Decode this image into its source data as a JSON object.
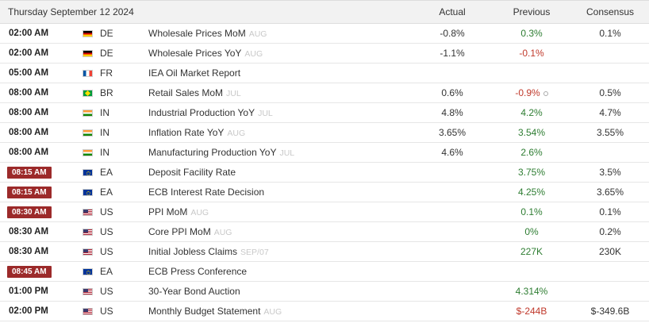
{
  "header": {
    "date": "Thursday September 12 2024",
    "actual": "Actual",
    "previous": "Previous",
    "consensus": "Consensus"
  },
  "colors": {
    "badge": "#9c2a2a",
    "positive": "#2e7d32",
    "negative": "#c0392b"
  },
  "rows": [
    {
      "time": "02:00 AM",
      "badge": false,
      "flag": "de-flag-icon",
      "country": "DE",
      "event": "Wholesale Prices MoM",
      "ref": "AUG",
      "actual": "-0.8%",
      "previous": "0.3%",
      "prevClass": "up",
      "consensus": "0.1%"
    },
    {
      "time": "02:00 AM",
      "badge": false,
      "flag": "de-flag-icon",
      "country": "DE",
      "event": "Wholesale Prices YoY",
      "ref": "AUG",
      "actual": "-1.1%",
      "previous": "-0.1%",
      "prevClass": "down",
      "consensus": ""
    },
    {
      "time": "05:00 AM",
      "badge": false,
      "flag": "fr-flag-icon",
      "country": "FR",
      "event": "IEA Oil Market Report",
      "ref": "",
      "actual": "",
      "previous": "",
      "prevClass": "",
      "consensus": ""
    },
    {
      "time": "08:00 AM",
      "badge": false,
      "flag": "br-flag-icon",
      "country": "BR",
      "event": "Retail Sales MoM",
      "ref": "JUL",
      "actual": "0.6%",
      "previous": "-0.9%",
      "prevClass": "down",
      "revised": true,
      "consensus": "0.5%"
    },
    {
      "time": "08:00 AM",
      "badge": false,
      "flag": "in-flag-icon",
      "country": "IN",
      "event": "Industrial Production YoY",
      "ref": "JUL",
      "actual": "4.8%",
      "previous": "4.2%",
      "prevClass": "up",
      "consensus": "4.7%"
    },
    {
      "time": "08:00 AM",
      "badge": false,
      "flag": "in-flag-icon",
      "country": "IN",
      "event": "Inflation Rate YoY",
      "ref": "AUG",
      "actual": "3.65%",
      "previous": "3.54%",
      "prevClass": "up",
      "consensus": "3.55%"
    },
    {
      "time": "08:00 AM",
      "badge": false,
      "flag": "in-flag-icon",
      "country": "IN",
      "event": "Manufacturing Production YoY",
      "ref": "JUL",
      "actual": "4.6%",
      "previous": "2.6%",
      "prevClass": "up",
      "consensus": ""
    },
    {
      "time": "08:15 AM",
      "badge": true,
      "flag": "eu-flag-icon",
      "country": "EA",
      "event": "Deposit Facility Rate",
      "ref": "",
      "actual": "",
      "previous": "3.75%",
      "prevClass": "up",
      "consensus": "3.5%"
    },
    {
      "time": "08:15 AM",
      "badge": true,
      "flag": "eu-flag-icon",
      "country": "EA",
      "event": "ECB Interest Rate Decision",
      "ref": "",
      "actual": "",
      "previous": "4.25%",
      "prevClass": "up",
      "consensus": "3.65%"
    },
    {
      "time": "08:30 AM",
      "badge": true,
      "flag": "us-flag-icon",
      "country": "US",
      "event": "PPI MoM",
      "ref": "AUG",
      "actual": "",
      "previous": "0.1%",
      "prevClass": "up",
      "consensus": "0.1%"
    },
    {
      "time": "08:30 AM",
      "badge": false,
      "flag": "us-flag-icon",
      "country": "US",
      "event": "Core PPI MoM",
      "ref": "AUG",
      "actual": "",
      "previous": "0%",
      "prevClass": "up",
      "consensus": "0.2%"
    },
    {
      "time": "08:30 AM",
      "badge": false,
      "flag": "us-flag-icon",
      "country": "US",
      "event": "Initial Jobless Claims",
      "ref": "SEP/07",
      "actual": "",
      "previous": "227K",
      "prevClass": "up",
      "consensus": "230K"
    },
    {
      "time": "08:45 AM",
      "badge": true,
      "flag": "eu-flag-icon",
      "country": "EA",
      "event": "ECB Press Conference",
      "ref": "",
      "actual": "",
      "previous": "",
      "prevClass": "",
      "consensus": ""
    },
    {
      "time": "01:00 PM",
      "badge": false,
      "flag": "us-flag-icon",
      "country": "US",
      "event": "30-Year Bond Auction",
      "ref": "",
      "actual": "",
      "previous": "4.314%",
      "prevClass": "up",
      "consensus": ""
    },
    {
      "time": "02:00 PM",
      "badge": false,
      "flag": "us-flag-icon",
      "country": "US",
      "event": "Monthly Budget Statement",
      "ref": "AUG",
      "actual": "",
      "previous": "$-244B",
      "prevClass": "down",
      "consensus": "$-349.6B"
    }
  ]
}
